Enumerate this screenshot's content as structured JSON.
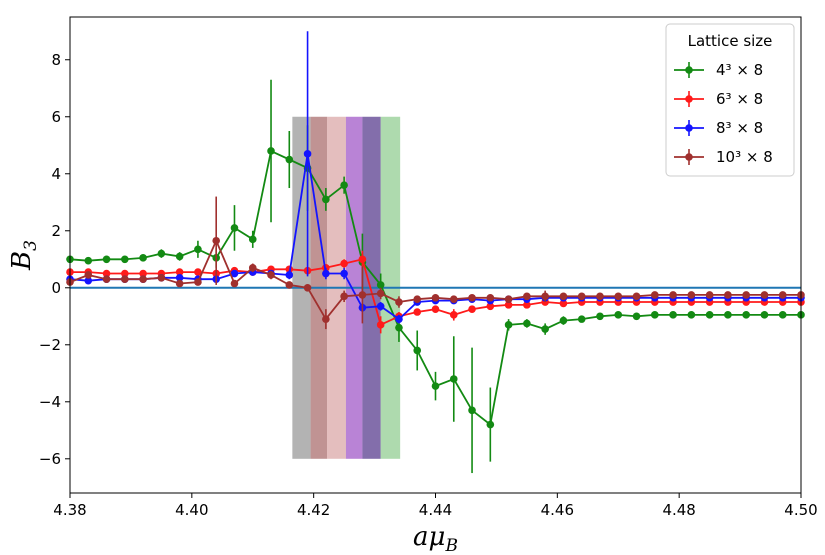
{
  "chart_data": {
    "type": "scatter",
    "xlabel_main": "aμ",
    "xlabel_sub": "B",
    "ylabel_main": "B",
    "ylabel_sub": "3",
    "xlim": [
      4.38,
      4.5
    ],
    "ylim": [
      -7.2,
      9.5
    ],
    "xticks": [
      4.38,
      4.4,
      4.42,
      4.44,
      4.46,
      4.48,
      4.5
    ],
    "xtick_labels": [
      "4.38",
      "4.40",
      "4.42",
      "4.44",
      "4.46",
      "4.48",
      "4.50"
    ],
    "yticks": [
      -6,
      -4,
      -2,
      0,
      2,
      4,
      6,
      8
    ],
    "ytick_labels": [
      "−6",
      "−4",
      "−2",
      "0",
      "2",
      "4",
      "6",
      "8"
    ],
    "grid": false,
    "legend": {
      "title": "Lattice size",
      "placement": "top-right",
      "entries": [
        "4³ × 8",
        "6³ × 8",
        "8³ × 8",
        "10³ × 8"
      ]
    },
    "reference_line": {
      "y": 0,
      "color": "#1f77b4"
    },
    "bands": [
      {
        "x0": 4.4165,
        "x1": 4.4195,
        "y0": -6,
        "y1": 6,
        "color": "#808080",
        "opacity": 0.6
      },
      {
        "x0": 4.4195,
        "x1": 4.4222,
        "y0": -6,
        "y1": 6,
        "color": "#8c3b3b",
        "opacity": 0.55
      },
      {
        "x0": 4.4222,
        "x1": 4.4253,
        "y0": -6,
        "y1": 6,
        "color": "#d9a3a3",
        "opacity": 0.7
      },
      {
        "x0": 4.4253,
        "x1": 4.428,
        "y0": -6,
        "y1": 6,
        "color": "#9b4fc4",
        "opacity": 0.7
      },
      {
        "x0": 4.428,
        "x1": 4.431,
        "y0": -6,
        "y1": 6,
        "color": "#5a3d8f",
        "opacity": 0.75
      },
      {
        "x0": 4.431,
        "x1": 4.4342,
        "y0": -6,
        "y1": 6,
        "color": "#78c278",
        "opacity": 0.6
      }
    ],
    "series": [
      {
        "name": "4³ × 8",
        "color": "#138a13",
        "x": [
          4.38,
          4.383,
          4.386,
          4.389,
          4.392,
          4.395,
          4.398,
          4.401,
          4.404,
          4.407,
          4.41,
          4.413,
          4.416,
          4.419,
          4.422,
          4.425,
          4.428,
          4.431,
          4.434,
          4.437,
          4.44,
          4.443,
          4.446,
          4.449,
          4.452,
          4.455,
          4.458,
          4.461,
          4.464,
          4.467,
          4.47,
          4.473,
          4.476,
          4.479,
          4.482,
          4.485,
          4.488,
          4.491,
          4.494,
          4.497,
          4.5
        ],
        "y": [
          1.0,
          0.95,
          1.0,
          1.0,
          1.05,
          1.2,
          1.1,
          1.35,
          1.05,
          2.1,
          1.7,
          4.8,
          4.5,
          4.2,
          3.1,
          3.6,
          0.9,
          0.1,
          -1.4,
          -2.2,
          -3.45,
          -3.2,
          -4.3,
          -4.8,
          -1.3,
          -1.25,
          -1.45,
          -1.15,
          -1.1,
          -1.0,
          -0.95,
          -1.0,
          -0.95,
          -0.95,
          -0.95,
          -0.95,
          -0.95,
          -0.95,
          -0.95,
          -0.95,
          -0.95
        ],
        "yerr": [
          0.1,
          0.1,
          0.1,
          0.1,
          0.1,
          0.15,
          0.15,
          0.3,
          0.35,
          0.8,
          0.3,
          2.5,
          1.0,
          1.5,
          0.4,
          0.3,
          1.0,
          0.4,
          0.5,
          0.7,
          0.5,
          1.5,
          2.2,
          1.3,
          0.2,
          0.15,
          0.2,
          0.15,
          0.1,
          0.1,
          0.1,
          0.1,
          0.1,
          0.1,
          0.1,
          0.1,
          0.1,
          0.1,
          0.1,
          0.1,
          0.1
        ]
      },
      {
        "name": "6³ × 8",
        "color": "#ff1a1a",
        "x": [
          4.38,
          4.383,
          4.386,
          4.389,
          4.392,
          4.395,
          4.398,
          4.401,
          4.404,
          4.407,
          4.41,
          4.413,
          4.416,
          4.419,
          4.422,
          4.425,
          4.428,
          4.431,
          4.434,
          4.437,
          4.44,
          4.443,
          4.446,
          4.449,
          4.452,
          4.455,
          4.458,
          4.461,
          4.464,
          4.467,
          4.47,
          4.473,
          4.476,
          4.479,
          4.482,
          4.485,
          4.488,
          4.491,
          4.494,
          4.497,
          4.5
        ],
        "y": [
          0.55,
          0.55,
          0.5,
          0.5,
          0.5,
          0.5,
          0.55,
          0.55,
          0.5,
          0.6,
          0.55,
          0.65,
          0.65,
          0.6,
          0.7,
          0.85,
          1.0,
          -1.3,
          -1.0,
          -0.85,
          -0.75,
          -0.95,
          -0.75,
          -0.65,
          -0.6,
          -0.6,
          -0.5,
          -0.55,
          -0.5,
          -0.5,
          -0.5,
          -0.5,
          -0.5,
          -0.5,
          -0.5,
          -0.5,
          -0.5,
          -0.5,
          -0.5,
          -0.5,
          -0.5
        ],
        "yerr": [
          0.1,
          0.1,
          0.1,
          0.1,
          0.1,
          0.1,
          0.1,
          0.1,
          0.1,
          0.1,
          0.1,
          0.1,
          0.1,
          0.1,
          0.1,
          0.15,
          0.3,
          0.3,
          0.15,
          0.1,
          0.1,
          0.2,
          0.1,
          0.1,
          0.1,
          0.1,
          0.1,
          0.1,
          0.1,
          0.1,
          0.1,
          0.1,
          0.1,
          0.1,
          0.1,
          0.1,
          0.1,
          0.1,
          0.1,
          0.1,
          0.1
        ]
      },
      {
        "name": "8³ × 8",
        "color": "#1414ff",
        "x": [
          4.38,
          4.383,
          4.386,
          4.389,
          4.392,
          4.395,
          4.398,
          4.401,
          4.404,
          4.407,
          4.41,
          4.413,
          4.416,
          4.419,
          4.422,
          4.425,
          4.428,
          4.431,
          4.434,
          4.437,
          4.44,
          4.443,
          4.446,
          4.449,
          4.452,
          4.455,
          4.458,
          4.461,
          4.464,
          4.467,
          4.47,
          4.473,
          4.476,
          4.479,
          4.482,
          4.485,
          4.488,
          4.491,
          4.494,
          4.497,
          4.5
        ],
        "y": [
          0.3,
          0.25,
          0.3,
          0.3,
          0.3,
          0.35,
          0.35,
          0.3,
          0.3,
          0.5,
          0.55,
          0.5,
          0.45,
          4.7,
          0.5,
          0.5,
          -0.7,
          -0.65,
          -1.1,
          -0.5,
          -0.45,
          -0.45,
          -0.4,
          -0.45,
          -0.4,
          -0.4,
          -0.35,
          -0.35,
          -0.35,
          -0.35,
          -0.35,
          -0.35,
          -0.35,
          -0.35,
          -0.35,
          -0.35,
          -0.35,
          -0.35,
          -0.35,
          -0.35,
          -0.35
        ],
        "yerr": [
          0.08,
          0.08,
          0.08,
          0.08,
          0.08,
          0.08,
          0.08,
          0.08,
          0.08,
          0.1,
          0.1,
          0.1,
          0.15,
          4.3,
          0.2,
          0.2,
          0.15,
          0.15,
          0.15,
          0.1,
          0.08,
          0.08,
          0.08,
          0.08,
          0.08,
          0.08,
          0.08,
          0.08,
          0.08,
          0.08,
          0.08,
          0.08,
          0.08,
          0.08,
          0.08,
          0.08,
          0.08,
          0.08,
          0.08,
          0.08,
          0.08
        ]
      },
      {
        "name": "10³ × 8",
        "color": "#a0302e",
        "x": [
          4.38,
          4.383,
          4.386,
          4.389,
          4.392,
          4.395,
          4.398,
          4.401,
          4.404,
          4.407,
          4.41,
          4.413,
          4.416,
          4.419,
          4.422,
          4.425,
          4.428,
          4.431,
          4.434,
          4.437,
          4.44,
          4.443,
          4.446,
          4.449,
          4.452,
          4.455,
          4.458,
          4.461,
          4.464,
          4.467,
          4.47,
          4.473,
          4.476,
          4.479,
          4.482,
          4.485,
          4.488,
          4.491,
          4.494,
          4.497,
          4.5
        ],
        "y": [
          0.2,
          0.45,
          0.3,
          0.3,
          0.3,
          0.35,
          0.15,
          0.2,
          1.65,
          0.15,
          0.7,
          0.45,
          0.1,
          0.0,
          -1.1,
          -0.3,
          -0.25,
          -0.2,
          -0.5,
          -0.4,
          -0.35,
          -0.4,
          -0.35,
          -0.35,
          -0.4,
          -0.3,
          -0.3,
          -0.3,
          -0.3,
          -0.3,
          -0.3,
          -0.3,
          -0.25,
          -0.25,
          -0.25,
          -0.25,
          -0.25,
          -0.25,
          -0.25,
          -0.25,
          -0.25
        ],
        "yerr": [
          0.1,
          0.1,
          0.1,
          0.1,
          0.1,
          0.1,
          0.1,
          0.1,
          1.55,
          0.1,
          0.15,
          0.15,
          0.1,
          0.1,
          0.35,
          0.2,
          1.0,
          0.2,
          0.2,
          0.1,
          0.1,
          0.1,
          0.1,
          0.1,
          0.1,
          0.1,
          0.2,
          0.1,
          0.1,
          0.1,
          0.1,
          0.1,
          0.1,
          0.1,
          0.1,
          0.1,
          0.1,
          0.1,
          0.1,
          0.1,
          0.1
        ]
      }
    ]
  }
}
